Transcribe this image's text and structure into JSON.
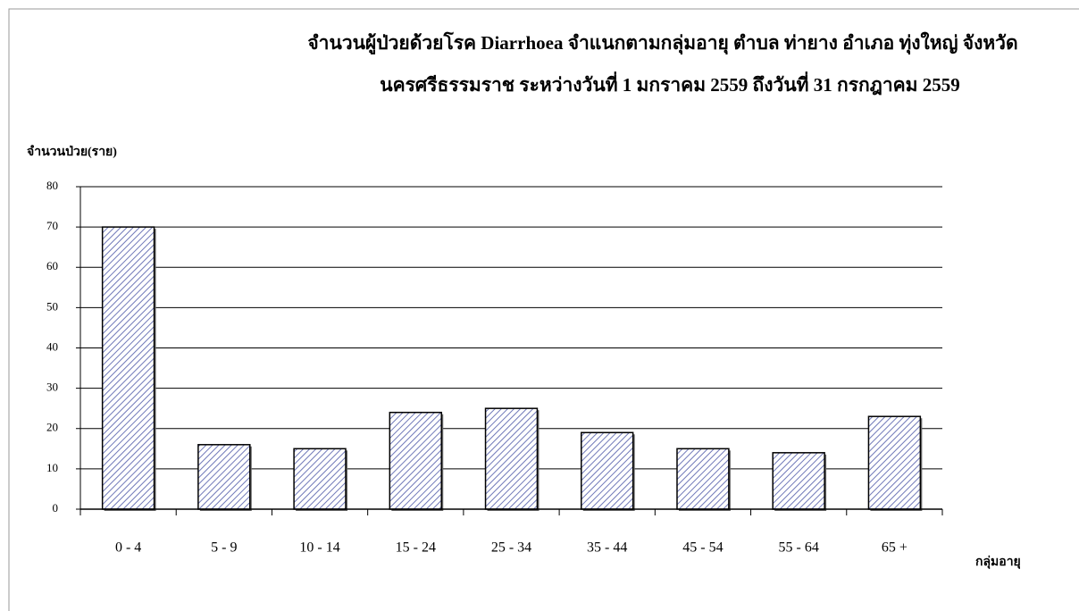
{
  "chart_data": {
    "type": "bar",
    "title": [
      "จำนวนผู้ป่วยด้วยโรค Diarrhoea จำแนกตามกลุ่มอายุ  ตำบล ท่ายาง อำเภอ ทุ่งใหญ่ จังหวัด",
      "นครศรีธรรมราช  ระหว่างวันที่  1 มกราคม 2559  ถึงวันที่  31 กรกฎาคม 2559"
    ],
    "y_label": "จำนวนป่วย(ราย)",
    "x_label": "กลุ่มอายุ",
    "categories": [
      "0 - 4",
      "5 - 9",
      "10 - 14",
      "15 - 24",
      "25 - 34",
      "35 - 44",
      "45 - 54",
      "55 - 64",
      "65 +"
    ],
    "values": [
      70,
      16,
      15,
      24,
      25,
      19,
      15,
      14,
      23
    ],
    "color": "#d8dcf4",
    "ylim": [
      0,
      80
    ],
    "yticks": [
      0,
      10,
      20,
      30,
      40,
      50,
      60,
      70,
      80
    ],
    "grid": true
  }
}
